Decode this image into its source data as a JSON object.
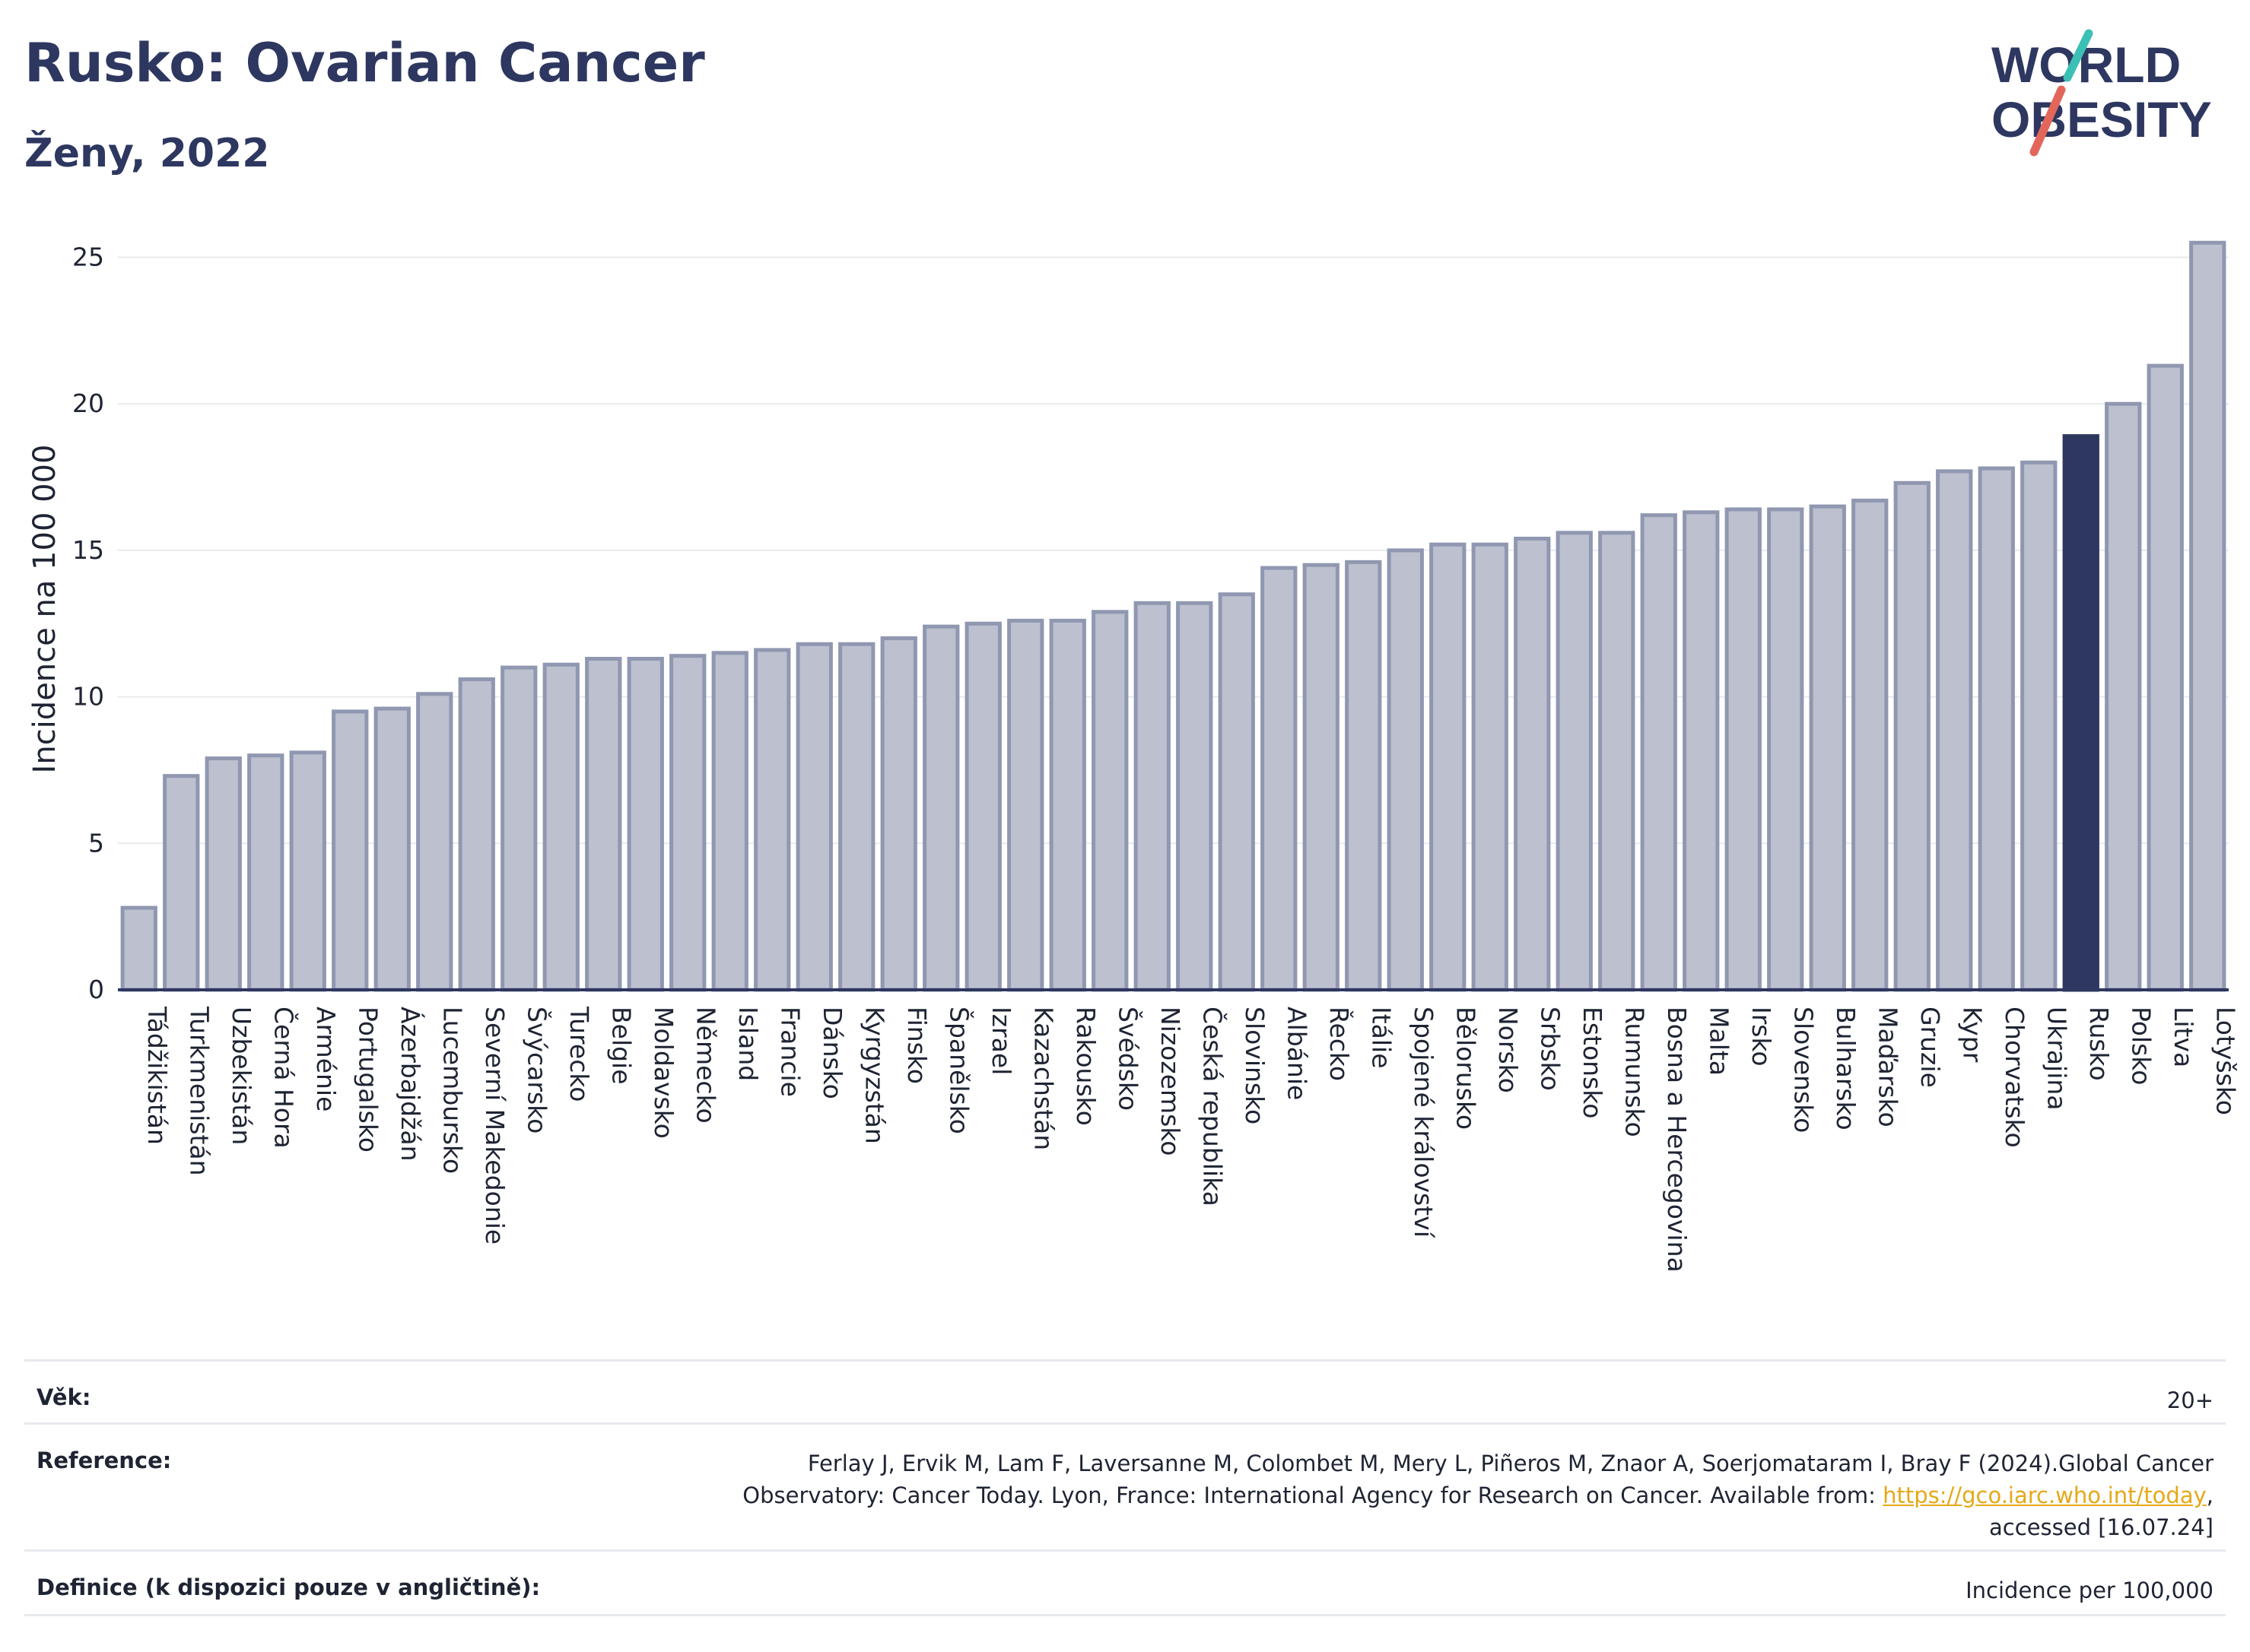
{
  "header": {
    "title": "Rusko: Ovarian Cancer",
    "subtitle": "Ženy, 2022"
  },
  "logo": {
    "line1": "WORLD",
    "line2": "OBESITY"
  },
  "colors": {
    "bar": "#bcc0cf",
    "bar_border": "#9097b0",
    "highlight": "#2d3760",
    "grid": "#e8eaee",
    "accent_teal": "#3cbfb4",
    "accent_red": "#e2675a"
  },
  "chart_data": {
    "type": "bar",
    "title": "Rusko: Ovarian Cancer",
    "subtitle": "Ženy, 2022",
    "xlabel": "",
    "ylabel": "Incidence na 100 000",
    "ylim": [
      0,
      26
    ],
    "yticks": [
      0,
      5,
      10,
      15,
      20,
      25
    ],
    "grid": true,
    "highlight": "Rusko",
    "categories": [
      "Tádžikistán",
      "Turkmenistán",
      "Uzbekistán",
      "Černá Hora",
      "Arménie",
      "Portugalsko",
      "Ázerbajdžán",
      "Lucembursko",
      "Severní Makedonie",
      "Švýcarsko",
      "Turecko",
      "Belgie",
      "Moldavsko",
      "Německo",
      "Island",
      "Francie",
      "Dánsko",
      "Kyrgyzstán",
      "Finsko",
      "Španělsko",
      "Izrael",
      "Kazachstán",
      "Rakousko",
      "Švédsko",
      "Nizozemsko",
      "Česká republika",
      "Slovinsko",
      "Albánie",
      "Řecko",
      "Itálie",
      "Spojené království",
      "Bělorusko",
      "Norsko",
      "Srbsko",
      "Estonsko",
      "Rumunsko",
      "Bosna a Hercegovina",
      "Malta",
      "Irsko",
      "Slovensko",
      "Bulharsko",
      "Maďarsko",
      "Gruzie",
      "Kypr",
      "Chorvatsko",
      "Ukrajina",
      "Rusko",
      "Polsko",
      "Litva",
      "Lotyšsko"
    ],
    "values": [
      2.8,
      7.3,
      7.9,
      8.0,
      8.1,
      9.5,
      9.6,
      10.1,
      10.6,
      11.0,
      11.1,
      11.3,
      11.3,
      11.4,
      11.5,
      11.6,
      11.8,
      11.8,
      12.0,
      12.4,
      12.5,
      12.6,
      12.6,
      12.9,
      13.2,
      13.2,
      13.5,
      14.4,
      14.5,
      14.6,
      15.0,
      15.2,
      15.2,
      15.4,
      15.6,
      15.6,
      16.2,
      16.3,
      16.4,
      16.4,
      16.5,
      16.7,
      17.3,
      17.7,
      17.8,
      18.0,
      18.9,
      20.0,
      21.3,
      25.5
    ]
  },
  "meta": {
    "age_label": "Věk:",
    "age_value": "20+",
    "ref_label": "Reference:",
    "ref_text1": "Ferlay J, Ervik M, Lam F, Laversanne M, Colombet M, Mery L, Piñeros M, Znaor A, Soerjomataram I, Bray F (2024).Global Cancer",
    "ref_text2": "Observatory: Cancer Today. Lyon, France: International Agency for Research on Cancer. Available from: ",
    "ref_link": "https://gco.iarc.who.int/today",
    "ref_text3": ",",
    "ref_text4": "accessed [16.07.24]",
    "def_label": "Definice (k dispozici pouze v angličtině):",
    "def_value": "Incidence per 100,000"
  }
}
